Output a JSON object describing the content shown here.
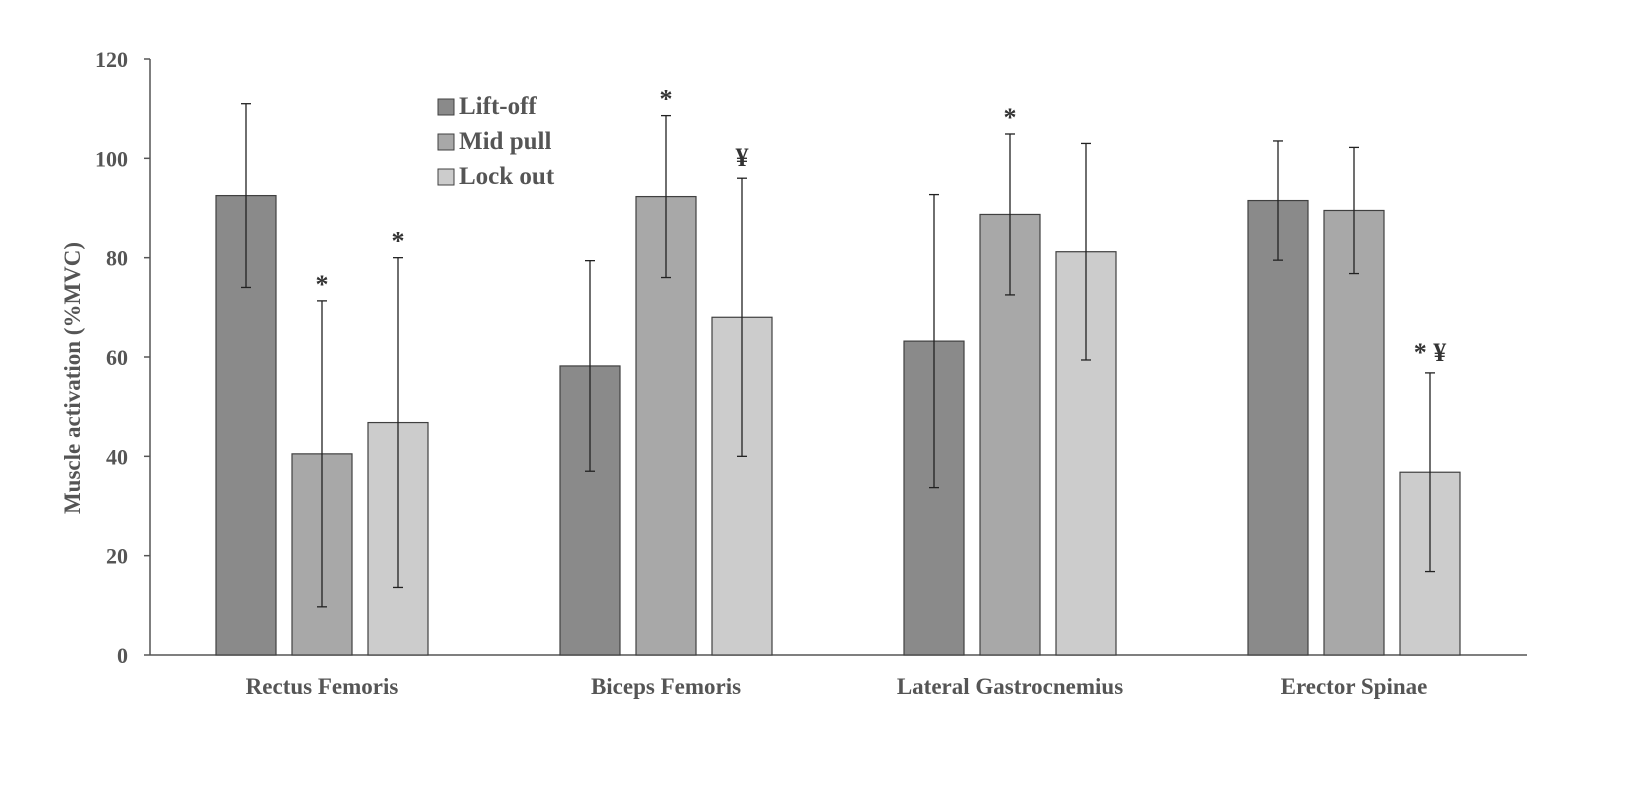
{
  "chart_data": {
    "type": "bar",
    "title": "",
    "xlabel": "",
    "ylabel": "Muscle activation (%MVC)",
    "ylim": [
      0,
      120
    ],
    "yticks": [
      0,
      20,
      40,
      60,
      80,
      100,
      120
    ],
    "grid": false,
    "legend_position": "top-left",
    "categories": [
      "Rectus Femoris",
      "Biceps Femoris",
      "Lateral Gastrocnemius",
      "Erector Spinae"
    ],
    "series": [
      {
        "name": "Lift-off",
        "color": "#8a8a8a",
        "values": [
          92.5,
          58.2,
          63.2,
          91.5
        ],
        "error": [
          18.5,
          21.2,
          29.5,
          12
        ],
        "annotations": [
          "",
          "",
          "",
          ""
        ]
      },
      {
        "name": "Mid pull",
        "color": "#a8a8a8",
        "values": [
          40.5,
          92.3,
          88.7,
          89.5
        ],
        "error": [
          30.8,
          16.3,
          16.2,
          12.7
        ],
        "annotations": [
          "*",
          "*",
          "*",
          ""
        ]
      },
      {
        "name": "Lock out",
        "color": "#cccccc",
        "values": [
          46.8,
          68,
          81.2,
          36.8
        ],
        "error": [
          33.2,
          28,
          21.8,
          20
        ],
        "annotations": [
          "*",
          "¥",
          "",
          "* ¥"
        ]
      }
    ]
  }
}
